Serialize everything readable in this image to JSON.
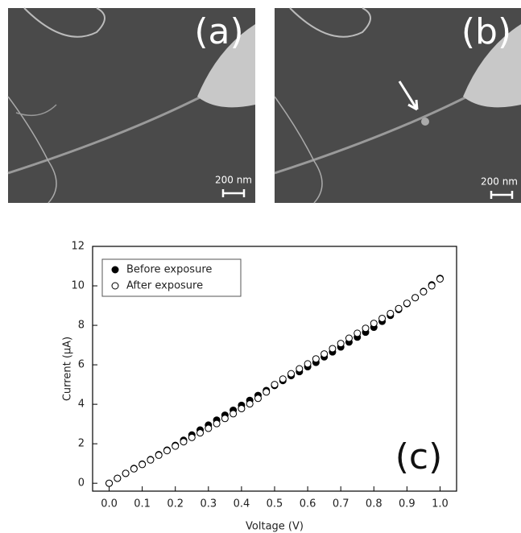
{
  "panels": [
    {
      "label": "(a)",
      "scale": "200 nm"
    },
    {
      "label": "(b)",
      "scale": "200 nm"
    }
  ],
  "chart_data": {
    "type": "scatter",
    "x_label": "Voltage (V)",
    "y_label": "Current (μA)",
    "annotation": "(c)",
    "x": [
      0,
      0.025,
      0.05,
      0.075,
      0.1,
      0.125,
      0.15,
      0.175,
      0.2,
      0.225,
      0.25,
      0.275,
      0.3,
      0.325,
      0.35,
      0.375,
      0.4,
      0.425,
      0.45,
      0.475,
      0.5,
      0.525,
      0.55,
      0.575,
      0.6,
      0.625,
      0.65,
      0.675,
      0.7,
      0.725,
      0.75,
      0.775,
      0.8,
      0.825,
      0.85,
      0.875,
      0.9,
      0.925,
      0.95,
      0.975,
      1.0
    ],
    "series": [
      {
        "name": "Before exposure",
        "color": "#000000",
        "filled": true,
        "values": [
          0,
          0.25,
          0.5,
          0.75,
          0.97,
          1.2,
          1.45,
          1.68,
          1.92,
          2.18,
          2.45,
          2.7,
          2.95,
          3.2,
          3.45,
          3.7,
          3.95,
          4.2,
          4.45,
          4.7,
          4.95,
          5.2,
          5.45,
          5.65,
          5.9,
          6.12,
          6.4,
          6.65,
          6.9,
          7.15,
          7.4,
          7.65,
          7.9,
          8.2,
          8.5,
          8.8,
          9.1,
          9.4,
          9.72,
          10.05,
          10.38
        ]
      },
      {
        "name": "After exposure",
        "color": "#000000",
        "filled": false,
        "values": [
          0,
          0.25,
          0.5,
          0.73,
          0.95,
          1.18,
          1.42,
          1.65,
          1.88,
          2.1,
          2.32,
          2.55,
          2.78,
          3.02,
          3.28,
          3.52,
          3.78,
          4.02,
          4.3,
          4.62,
          5.0,
          5.28,
          5.55,
          5.8,
          6.05,
          6.3,
          6.55,
          6.82,
          7.08,
          7.35,
          7.6,
          7.85,
          8.1,
          8.35,
          8.6,
          8.85,
          9.12,
          9.4,
          9.7,
          10.0,
          10.35
        ]
      }
    ],
    "xlim": [
      -0.05,
      1.05
    ],
    "ylim": [
      -0.4,
      12
    ],
    "xticks": [
      {
        "value": 0,
        "label": "0.0"
      },
      0.1,
      0.2,
      0.3,
      0.4,
      0.5,
      0.6,
      0.7,
      0.8,
      0.9,
      {
        "value": 1,
        "label": "1.0"
      }
    ],
    "yticks": [
      0,
      2,
      4,
      6,
      8,
      10,
      12
    ],
    "grid": false,
    "legend": "top-left"
  }
}
